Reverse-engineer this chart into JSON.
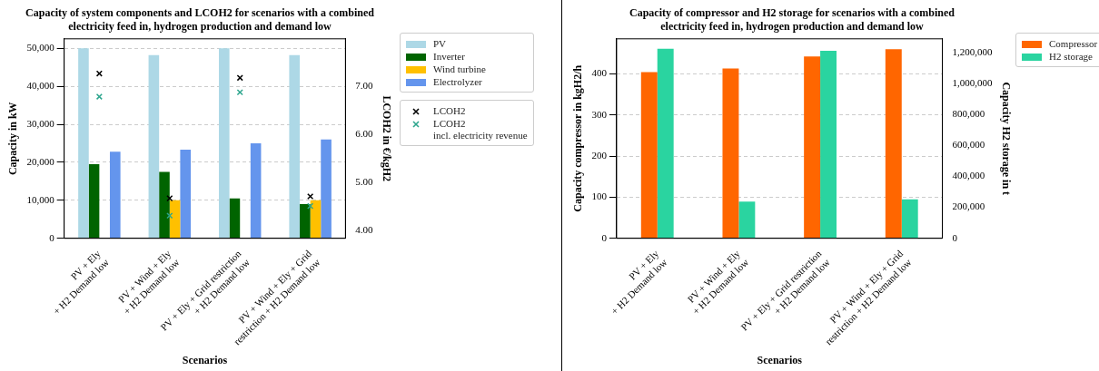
{
  "chart_data": [
    {
      "type": "bar",
      "title": "Capacity of system components and LCOH2 for scenarios with a combined\nelectricity feed in, hydrogen production and demand low",
      "xlabel": "Scenarios",
      "ylabel": "Capacity in kW",
      "y2label": "LCOH2 in €/kgH2",
      "categories": [
        "PV + Ely\n+ H2 Demand low",
        "PV + Wind + Ely\n+ H2 Demand low",
        "PV + Ely + Grid restriction\n+ H2 Demand low",
        "PV + Wind + Ely + Grid\nrestriction + H2 Demand low"
      ],
      "series": [
        {
          "name": "PV",
          "color": "#add8e6",
          "values": [
            50000,
            48200,
            50000,
            48200
          ]
        },
        {
          "name": "Inverter",
          "color": "#006400",
          "values": [
            19500,
            17500,
            10500,
            9000
          ]
        },
        {
          "name": "Wind turbine",
          "color": "#ffc000",
          "values": [
            0,
            10000,
            0,
            10000
          ]
        },
        {
          "name": "Electrolyzer",
          "color": "#6495ed",
          "values": [
            22800,
            23300,
            25000,
            26000
          ]
        },
        {
          "name": "LCOH2",
          "type": "scatter",
          "axis": "y2",
          "marker": "cross",
          "color": "#000000",
          "values": [
            7.26,
            4.67,
            7.17,
            4.71
          ]
        },
        {
          "name": "LCOH2\nincl. electricity revenue",
          "type": "scatter",
          "axis": "y2",
          "marker": "cross",
          "color": "#2ca58d",
          "values": [
            6.78,
            4.31,
            6.87,
            4.51
          ]
        }
      ],
      "ylim": [
        0,
        52500
      ],
      "yticks": [
        {
          "value": 0,
          "label": "0"
        },
        {
          "value": 10000,
          "label": "10,000"
        },
        {
          "value": 20000,
          "label": "20,000"
        },
        {
          "value": 30000,
          "label": "30,000"
        },
        {
          "value": 40000,
          "label": "40,000"
        },
        {
          "value": 50000,
          "label": "50,000"
        }
      ],
      "y2lim": [
        3.84,
        7.98
      ],
      "y2ticks": [
        {
          "value": 4,
          "label": "4.00"
        },
        {
          "value": 5,
          "label": "5.00"
        },
        {
          "value": 6,
          "label": "6.00"
        },
        {
          "value": 7,
          "label": "7.00"
        }
      ],
      "grid": "y",
      "legend": "right"
    },
    {
      "type": "bar",
      "title": "Capacity of compressor and H2 storage for scenarios with a combined\nelectricity feed in, hydrogen production and demand low",
      "xlabel": "Scenarios",
      "ylabel": "Capacity compressor in kgH2/h",
      "y2label": "Capacity H2 storage in t",
      "categories": [
        "PV + Ely\n+ H2 Demand low",
        "PV + Wind + Ely\n+ H2 Demand low",
        "PV + Ely + Grid restriction\n+ H2 Demand low",
        "PV + Wind + Ely + Grid\nrestriction + H2 Demand low"
      ],
      "series": [
        {
          "name": "Compressor",
          "color": "#ff6600",
          "values": [
            404,
            413,
            442,
            460
          ]
        },
        {
          "name": "H2 storage",
          "axis": "y2",
          "color": "#2ad4a0",
          "values": [
            1223000,
            237000,
            1210000,
            251000
          ]
        }
      ],
      "ylim": [
        0,
        485
      ],
      "yticks": [
        0,
        100,
        200,
        300,
        400
      ],
      "y2lim": [
        0,
        1287000
      ],
      "y2ticks": [
        {
          "value": 0,
          "label": "0"
        },
        {
          "value": 200000,
          "label": "200,000"
        },
        {
          "value": 400000,
          "label": "400,000"
        },
        {
          "value": 600000,
          "label": "600,000"
        },
        {
          "value": 800000,
          "label": "800,000"
        },
        {
          "value": 1000000,
          "label": "1,000,000"
        },
        {
          "value": 1200000,
          "label": "1,200,000"
        }
      ],
      "grid": "y",
      "legend": "right"
    }
  ]
}
